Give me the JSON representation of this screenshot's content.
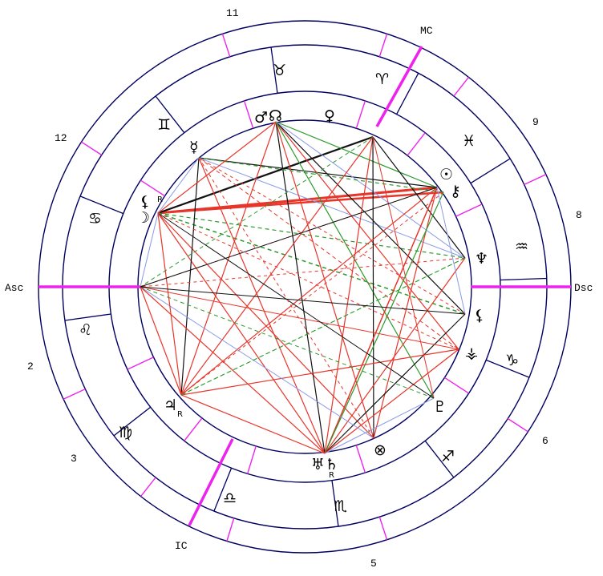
{
  "chart": {
    "house_labels": [
      {
        "key": "asc",
        "text": "Asc"
      },
      {
        "key": "dsc",
        "text": "Dsc"
      },
      {
        "key": "mc",
        "text": "MC"
      },
      {
        "key": "ic",
        "text": "IC"
      },
      {
        "key": "h11",
        "text": "11"
      },
      {
        "key": "h12",
        "text": "12"
      },
      {
        "key": "h2",
        "text": "2"
      },
      {
        "key": "h3",
        "text": "3"
      },
      {
        "key": "h5",
        "text": "5"
      },
      {
        "key": "h6",
        "text": "6"
      },
      {
        "key": "h8",
        "text": "8"
      },
      {
        "key": "h9",
        "text": "9"
      }
    ],
    "signs": [
      {
        "name": "aries",
        "glyph": "♈"
      },
      {
        "name": "taurus",
        "glyph": "♉"
      },
      {
        "name": "gemini",
        "glyph": "♊"
      },
      {
        "name": "cancer",
        "glyph": "♋"
      },
      {
        "name": "leo",
        "glyph": "♌"
      },
      {
        "name": "virgo",
        "glyph": "♍"
      },
      {
        "name": "libra",
        "glyph": "♎"
      },
      {
        "name": "scorpio",
        "glyph": "♏"
      },
      {
        "name": "sagittarius",
        "glyph": "♐"
      },
      {
        "name": "capricorn",
        "glyph": "♑"
      },
      {
        "name": "aquarius",
        "glyph": "♒"
      },
      {
        "name": "pisces",
        "glyph": "♓"
      }
    ],
    "planets": [
      {
        "name": "mars",
        "glyph": "♂"
      },
      {
        "name": "north-node",
        "glyph": "☊"
      },
      {
        "name": "venus",
        "glyph": "♀"
      },
      {
        "name": "mercury",
        "glyph": "☿"
      },
      {
        "name": "sun",
        "glyph": "☉"
      },
      {
        "name": "chiron",
        "glyph": "⚷"
      },
      {
        "name": "neptune",
        "glyph": "♆"
      },
      {
        "name": "black-moon",
        "glyph": "⚸"
      },
      {
        "name": "vesta",
        "glyph": "⚶"
      },
      {
        "name": "pluto",
        "glyph": "♇"
      },
      {
        "name": "part-of-fortune",
        "glyph": "⊗"
      },
      {
        "name": "uranus-saturn",
        "glyph": "♅♄"
      },
      {
        "name": "jupiter",
        "glyph": "♃"
      },
      {
        "name": "moon",
        "glyph": "☽"
      },
      {
        "name": "lilith-moon",
        "glyph": "⚸"
      }
    ],
    "retrograde_marker": "R",
    "colors": {
      "axis": "#ee22ee",
      "house_tick": "#ee22ee",
      "ring": "#000060",
      "red": "#e8352a",
      "green": "#2a9a2a",
      "blue": "#8899e8",
      "black": "#111111"
    }
  }
}
